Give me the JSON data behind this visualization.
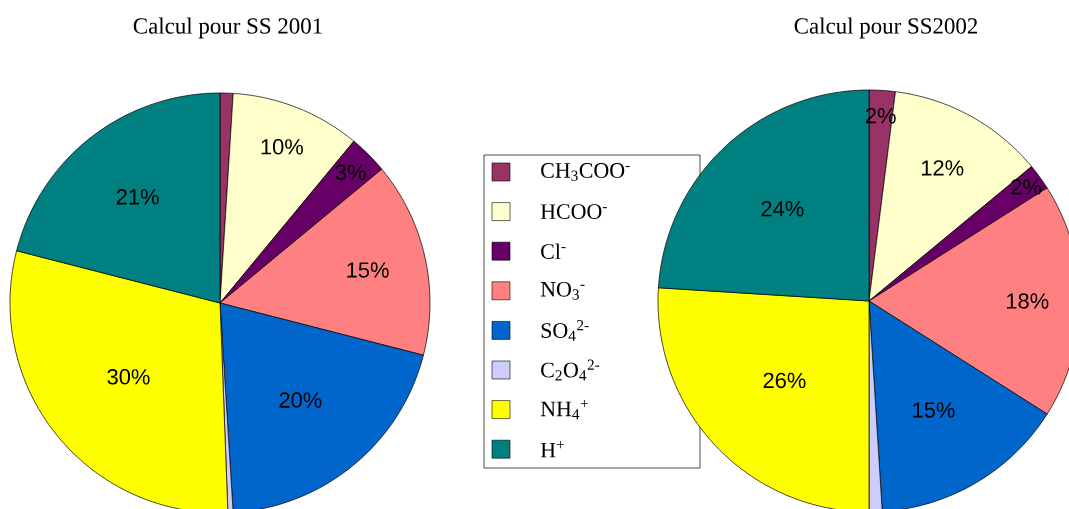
{
  "chart_data": [
    {
      "type": "pie",
      "title": "Calcul pour SS 2001",
      "categories": [
        "CH$_{3}$COO$^{-}$",
        "HCOO$^{-}$",
        "Cl$^{-}$",
        "NO$_{3}$$^{-}$",
        "SO$_{4}$$^{2-}$",
        "C$_{2}$O$_{4}$$^{2-}$",
        "NH$_{4}$$^{+}$",
        "H$^{+}$"
      ],
      "values": [
        1,
        10,
        3,
        15,
        20,
        0.4,
        29.6,
        21
      ],
      "value_labels": [
        null,
        "10%",
        "3%",
        "15%",
        "20%",
        null,
        "30%",
        "21%"
      ],
      "colors": [
        "#993366",
        "#ffffcc",
        "#660066",
        "#ff8080",
        "#0066cc",
        "#ccccff",
        "#ffff00",
        "#008080"
      ],
      "legend": "right"
    },
    {
      "type": "pie",
      "title": "Calcul pour SS2002",
      "categories": [
        null,
        null,
        null,
        null,
        null,
        null,
        null,
        null
      ],
      "values": [
        2,
        12,
        2,
        18,
        15,
        1,
        26,
        24
      ],
      "value_labels": [
        "2%",
        "12%",
        "2%",
        "18%",
        "15%",
        null,
        "26%",
        "24%"
      ],
      "colors": [
        "#993366",
        "#ffffcc",
        "#660066",
        "#ff8080",
        "#0066cc",
        "#ccccff",
        "#ffff00",
        "#008080"
      ]
    }
  ]
}
